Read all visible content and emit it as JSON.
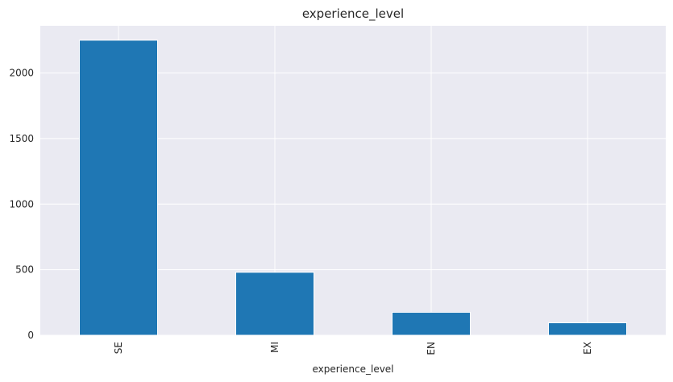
{
  "chart_data": {
    "type": "bar",
    "title": "experience_level",
    "xlabel": "experience_level",
    "ylabel": "",
    "categories": [
      "SE",
      "MI",
      "EN",
      "EX"
    ],
    "values": [
      2250,
      480,
      175,
      95
    ],
    "ylim": [
      0,
      2360
    ],
    "yticks": [
      0,
      500,
      1000,
      1500,
      2000
    ],
    "grid": true,
    "colors": {
      "bar": "#1f77b4",
      "background": "#eaeaf2",
      "grid": "#ffffff"
    }
  }
}
